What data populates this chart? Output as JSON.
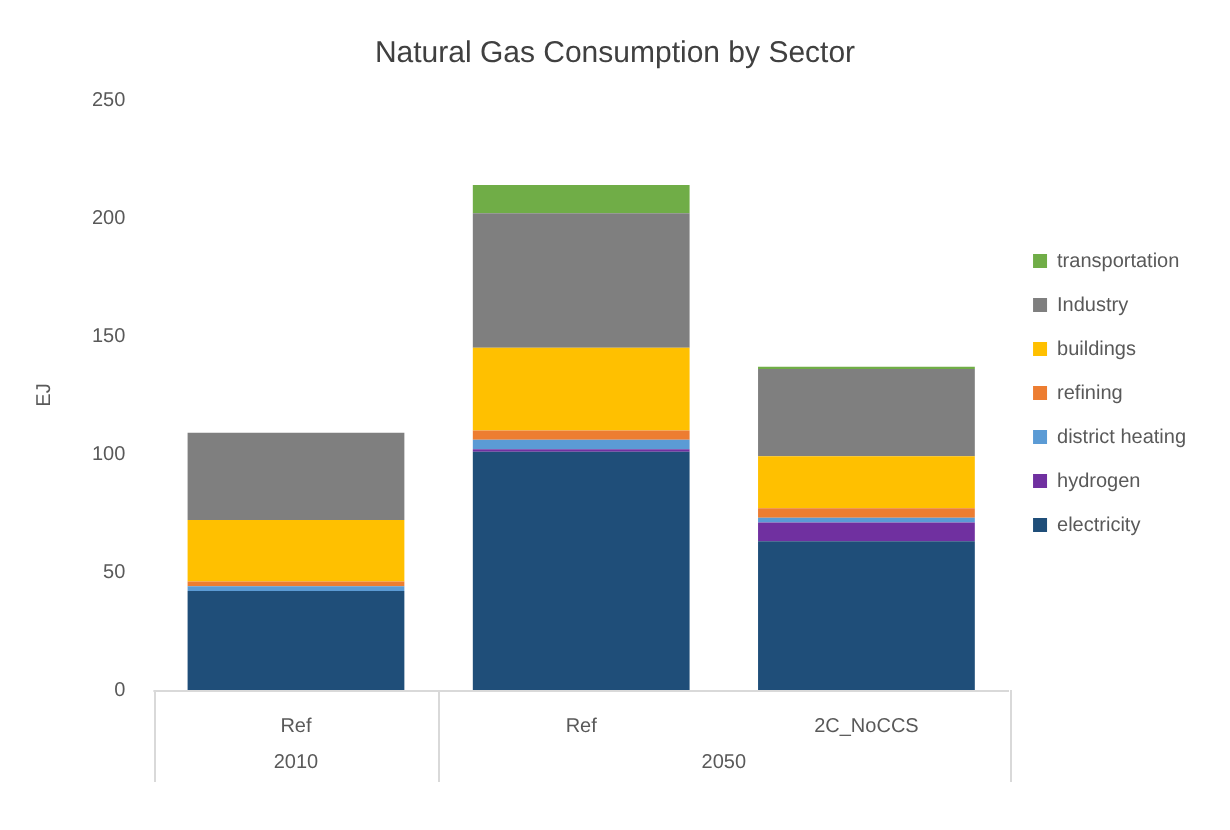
{
  "chart_data": {
    "type": "bar",
    "title": "Natural Gas Consumption by Sector",
    "ylabel": "EJ",
    "categories": [
      "Ref",
      "Ref",
      "2C_NoCCS"
    ],
    "annotations": [
      "2010",
      "2050"
    ],
    "stacked": true,
    "series": [
      {
        "name": "electricity",
        "color": "#1f4e79",
        "values": [
          42,
          101,
          63
        ]
      },
      {
        "name": "hydrogen",
        "color": "#7030a0",
        "values": [
          0,
          1,
          8
        ]
      },
      {
        "name": "district heating",
        "color": "#5b9bd5",
        "values": [
          2,
          4,
          2
        ]
      },
      {
        "name": "refining",
        "color": "#ed7d31",
        "values": [
          2,
          4,
          4
        ]
      },
      {
        "name": "buildings",
        "color": "#ffc000",
        "values": [
          26,
          35,
          22
        ]
      },
      {
        "name": "Industry",
        "color": "#7f7f7f",
        "values": [
          37,
          57,
          37
        ]
      },
      {
        "name": "transportation",
        "color": "#70ad47",
        "values": [
          0,
          12,
          1
        ]
      }
    ],
    "ylim": [
      0,
      250
    ],
    "yticks": [
      0,
      50,
      100,
      150,
      200,
      250
    ],
    "legend": "right"
  }
}
